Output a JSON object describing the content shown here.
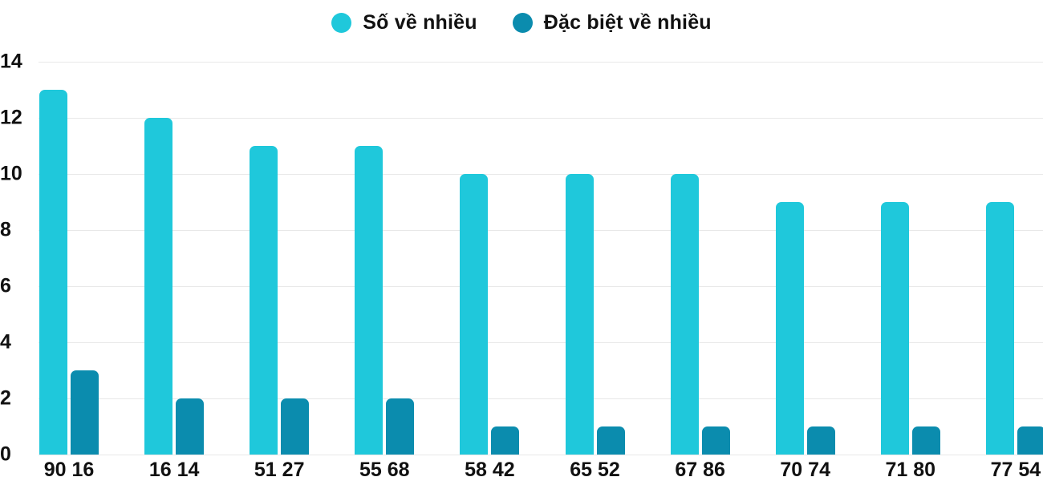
{
  "legend": {
    "items": [
      {
        "label": "Số về nhiều",
        "color": "#1fc8db"
      },
      {
        "label": "Đặc biệt về nhiều",
        "color": "#0b8cae"
      }
    ]
  },
  "chart_data": {
    "type": "bar",
    "title": "",
    "xlabel": "",
    "ylabel": "",
    "categories": [
      "90 16",
      "16 14",
      "51 27",
      "55 68",
      "58 42",
      "65 52",
      "67 86",
      "70 74",
      "71 80",
      "77 54"
    ],
    "series": [
      {
        "name": "Số về nhiều",
        "color": "#1fc8db",
        "values": [
          13,
          12,
          11,
          11,
          10,
          10,
          10,
          9,
          9,
          9
        ]
      },
      {
        "name": "Đặc biệt về nhiều",
        "color": "#0b8cae",
        "values": [
          3,
          2,
          2,
          2,
          1,
          1,
          1,
          1,
          1,
          1
        ]
      }
    ],
    "ylim": [
      0,
      14
    ],
    "yticks": [
      0,
      2,
      4,
      6,
      8,
      10,
      12,
      14
    ],
    "grid": true,
    "legend_position": "top"
  }
}
